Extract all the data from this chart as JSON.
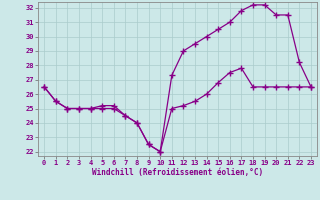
{
  "xlabel": "Windchill (Refroidissement éolien,°C)",
  "bg_color": "#cce8e8",
  "line_color": "#880088",
  "grid_color": "#aacccc",
  "xlim": [
    -0.5,
    23.5
  ],
  "ylim": [
    21.7,
    32.4
  ],
  "yticks": [
    22,
    23,
    24,
    25,
    26,
    27,
    28,
    29,
    30,
    31,
    32
  ],
  "xticks": [
    0,
    1,
    2,
    3,
    4,
    5,
    6,
    7,
    8,
    9,
    10,
    11,
    12,
    13,
    14,
    15,
    16,
    17,
    18,
    19,
    20,
    21,
    22,
    23
  ],
  "line1_x": [
    0,
    1,
    2,
    3,
    4,
    5,
    6,
    7,
    8,
    9,
    10,
    11,
    12,
    13,
    14,
    15,
    16,
    17,
    18,
    19,
    20,
    21,
    22,
    23
  ],
  "line1_y": [
    26.5,
    25.5,
    25.0,
    25.0,
    25.0,
    25.0,
    25.0,
    24.5,
    24.0,
    22.5,
    22.0,
    27.3,
    29.0,
    29.5,
    30.0,
    30.5,
    31.0,
    31.8,
    32.2,
    32.2,
    31.5,
    31.5,
    28.2,
    26.5
  ],
  "line2_x": [
    0,
    1,
    2,
    3,
    4,
    5,
    6,
    7,
    8,
    9,
    10,
    11,
    12,
    13,
    14,
    15,
    16,
    17,
    18,
    19,
    20,
    21,
    22,
    23
  ],
  "line2_y": [
    26.5,
    25.5,
    25.0,
    25.0,
    25.0,
    25.2,
    25.2,
    24.5,
    24.0,
    22.5,
    22.0,
    25.0,
    25.2,
    25.5,
    26.0,
    26.8,
    27.5,
    27.8,
    26.5,
    26.5,
    26.5,
    26.5,
    26.5,
    26.5
  ]
}
